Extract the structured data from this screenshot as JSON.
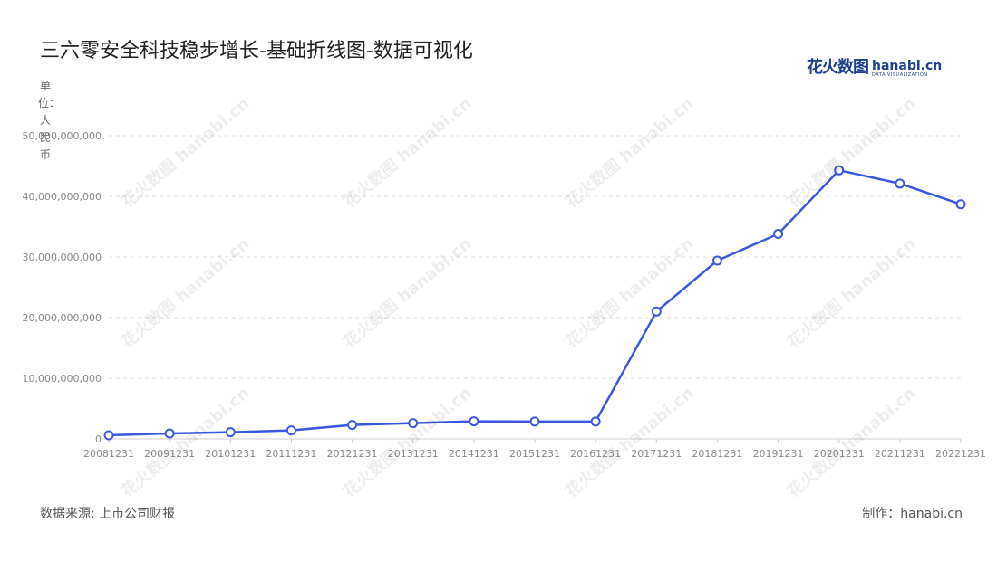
{
  "title": "三六零安全科技稳步增长-基础折线图-数据可视化",
  "logo": {
    "cn": "花火数图",
    "en": "hanabi.cn",
    "sub": "DATA VISUALIZATION"
  },
  "unit_label": "单位：人民币",
  "footer": {
    "source": "数据来源: 上市公司财报",
    "maker": "制作：hanabi.cn"
  },
  "watermark_text": "花火数图 hanabi.cn",
  "colors": {
    "line": "#3b57de",
    "grid": "#dcdcdc",
    "axis": "#cccccc",
    "tick_text": "#888888"
  },
  "chart_data": {
    "type": "line",
    "title": "三六零安全科技稳步增长-基础折线图-数据可视化",
    "ylabel": "单位：人民币",
    "xlabel": "",
    "ylim": [
      0,
      50000000000
    ],
    "y_ticks": [
      0,
      10000000000,
      20000000000,
      30000000000,
      40000000000,
      50000000000
    ],
    "y_tick_labels": [
      "0",
      "10,000,000,000",
      "20,000,000,000",
      "30,000,000,000",
      "40,000,000,000",
      "50,000,000,000"
    ],
    "grid": true,
    "legend": "none",
    "categories": [
      "20081231",
      "20091231",
      "20101231",
      "20111231",
      "20121231",
      "20131231",
      "20141231",
      "20151231",
      "20161231",
      "20171231",
      "20181231",
      "20191231",
      "20201231",
      "20211231",
      "20221231"
    ],
    "series": [
      {
        "values": [
          600000000,
          900000000,
          1100000000,
          1400000000,
          2300000000,
          2600000000,
          2900000000,
          2850000000,
          2850000000,
          21000000000,
          29400000000,
          33800000000,
          44300000000,
          42100000000,
          38700000000
        ]
      }
    ]
  }
}
